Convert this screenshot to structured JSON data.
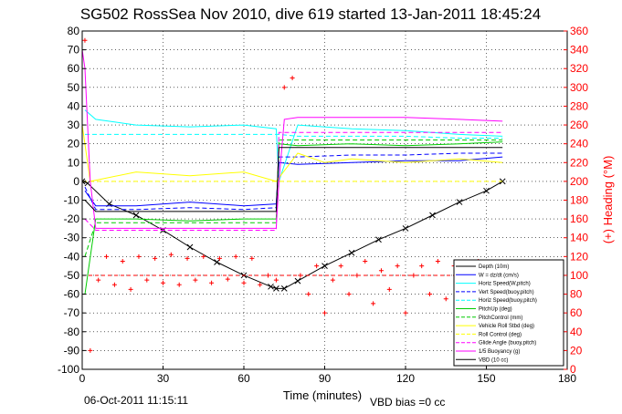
{
  "title": "SG502 RossSea Nov 2010, dive 619 started 13-Jan-2011 18:45:24",
  "footer": {
    "timestamp": "06-Oct-2011 11:15:11",
    "vbd_bias": "VBD bias =0 cc"
  },
  "colors": {
    "depth": "#000000",
    "w": "#0000ff",
    "horz_speed": "#00ffff",
    "pitch": "#00cc00",
    "roll": "#ffff00",
    "buoyancy": "#ff00ff",
    "heading": "#ff0000",
    "right_axis": "#ff0000"
  },
  "chart_data": {
    "type": "line",
    "title": "SG502 RossSea Nov 2010, dive 619 started 13-Jan-2011 18:45:24",
    "xlabel": "Time (minutes)",
    "ylabel": "",
    "y2label": "(+) Heading (°M)",
    "xlim": [
      0,
      180
    ],
    "ylim": [
      -100,
      80
    ],
    "y2lim": [
      0,
      360
    ],
    "x_ticks": [
      0,
      30,
      60,
      90,
      120,
      150,
      180
    ],
    "y_ticks": [
      -100,
      -90,
      -80,
      -70,
      -60,
      -50,
      -40,
      -30,
      -20,
      -10,
      0,
      10,
      20,
      30,
      40,
      50,
      60,
      70,
      80
    ],
    "y2_ticks": [
      0,
      20,
      40,
      60,
      80,
      100,
      120,
      140,
      160,
      180,
      200,
      220,
      240,
      260,
      280,
      300,
      320,
      340,
      360
    ],
    "grid": true,
    "legend_position": "bottom-right",
    "legend": [
      "Depth (10m)",
      "W = dz/dt (cm/s)",
      "Horiz Speed(W,pitch)",
      "Vert Speed(buoy,pitch)",
      "Horiz Speed(buoy,pitch)",
      "PitchUp (deg)",
      "PitchControl (mm)",
      "Vehicle Roll Stbd (deg)",
      "Roll Control (deg)",
      "Glide Angle (buoy,pitch)",
      "1/5 Buoyancy (g)",
      "VBD (10 cc)"
    ],
    "series": [
      {
        "name": "Depth (10m)",
        "color": "#000000",
        "style": "solid-x",
        "x": [
          0,
          2,
          10,
          20,
          30,
          40,
          50,
          60,
          70,
          72,
          75,
          80,
          90,
          100,
          110,
          120,
          130,
          140,
          150,
          156
        ],
        "y": [
          0,
          -1,
          -12,
          -18,
          -26,
          -35,
          -43,
          -50,
          -56,
          -57,
          -57,
          -53,
          -45,
          -38,
          -31,
          -25,
          -18,
          -11,
          -5,
          0
        ]
      },
      {
        "name": "W = dz/dt (cm/s)",
        "color": "#0000ff",
        "style": "solid",
        "x": [
          1,
          5,
          20,
          40,
          60,
          72,
          73,
          80,
          100,
          120,
          140,
          156
        ],
        "y": [
          -5,
          -13,
          -13,
          -11,
          -13,
          -12,
          10,
          9,
          10,
          11,
          11,
          13
        ]
      },
      {
        "name": "Horiz Speed(W,pitch)",
        "color": "#00ffff",
        "style": "solid",
        "x": [
          1,
          5,
          20,
          40,
          60,
          72,
          73,
          80,
          100,
          120,
          140,
          156
        ],
        "y": [
          38,
          33,
          30,
          29,
          30,
          28,
          0,
          30,
          28,
          27,
          25,
          24
        ]
      },
      {
        "name": "Vert Speed(buoy,pitch)",
        "color": "#0000ff",
        "style": "dashed",
        "x": [
          1,
          5,
          20,
          40,
          60,
          72,
          73,
          80,
          100,
          120,
          140,
          156
        ],
        "y": [
          -3,
          -15,
          -15,
          -14,
          -15,
          -14,
          13,
          13,
          14,
          14,
          15,
          15
        ]
      },
      {
        "name": "Horiz Speed(buoy,pitch)",
        "color": "#00ffff",
        "style": "dashed",
        "x": [
          1,
          5,
          20,
          40,
          60,
          72,
          73,
          80,
          100,
          120,
          140,
          156
        ],
        "y": [
          25,
          25,
          25,
          25,
          25,
          25,
          25,
          24,
          24,
          24,
          23,
          23
        ]
      },
      {
        "name": "PitchUp (deg)",
        "color": "#00cc00",
        "style": "solid",
        "x": [
          1,
          5,
          20,
          40,
          60,
          72,
          73,
          80,
          100,
          120,
          140,
          156
        ],
        "y": [
          -60,
          -20,
          -20,
          -21,
          -20,
          -20,
          20,
          19,
          20,
          19,
          20,
          21
        ]
      },
      {
        "name": "PitchControl (mm)",
        "color": "#00cc00",
        "style": "dashed",
        "x": [
          1,
          5,
          20,
          40,
          60,
          72,
          73,
          80,
          100,
          120,
          140,
          156
        ],
        "y": [
          -40,
          -22,
          -22,
          -22,
          -22,
          -22,
          22,
          22,
          22,
          22,
          22,
          22
        ]
      },
      {
        "name": "Vehicle Roll Stbd (deg)",
        "color": "#ffff00",
        "style": "solid",
        "x": [
          0,
          3,
          20,
          40,
          60,
          72,
          80,
          90,
          100,
          120,
          140,
          156
        ],
        "y": [
          30,
          0,
          5,
          3,
          5,
          0,
          15,
          10,
          12,
          10,
          12,
          10
        ]
      },
      {
        "name": "Roll Control (deg)",
        "color": "#ffff00",
        "style": "dashed",
        "x": [
          0,
          5,
          20,
          40,
          60,
          72,
          80,
          100,
          120,
          140,
          156
        ],
        "y": [
          0,
          0,
          0,
          0,
          0,
          0,
          0,
          0,
          0,
          0,
          0
        ]
      },
      {
        "name": "Glide Angle (buoy,pitch)",
        "color": "#ff00ff",
        "style": "dashed",
        "x": [
          1,
          5,
          20,
          40,
          60,
          72,
          73,
          80,
          100,
          120,
          140,
          156
        ],
        "y": [
          -20,
          -26,
          -26,
          -26,
          -26,
          -26,
          26,
          26,
          26,
          26,
          26,
          26
        ]
      },
      {
        "name": "1/5 Buoyancy (g)",
        "color": "#ff00ff",
        "style": "solid",
        "x": [
          0,
          1,
          3,
          5,
          20,
          40,
          60,
          72,
          73,
          75,
          80,
          100,
          120,
          140,
          156
        ],
        "y": [
          70,
          60,
          0,
          -25,
          -25,
          -25,
          -25,
          -25,
          0,
          33,
          34,
          34,
          34,
          33,
          32
        ]
      },
      {
        "name": "VBD (10 cc)",
        "color": "#000000",
        "style": "solid",
        "x": [
          1,
          5,
          20,
          40,
          60,
          72,
          73,
          80,
          100,
          120,
          140,
          156
        ],
        "y": [
          -10,
          -16,
          -16,
          -16,
          -16,
          -16,
          18,
          18,
          18,
          18,
          18,
          18
        ]
      }
    ],
    "heading": {
      "name": "(+) Heading (°M)",
      "axis": "right",
      "color": "#ff0000",
      "reference": 100,
      "x": [
        1,
        3,
        6,
        9,
        12,
        15,
        18,
        21,
        24,
        27,
        30,
        33,
        36,
        39,
        42,
        45,
        48,
        51,
        54,
        57,
        60,
        63,
        66,
        69,
        72,
        75,
        78,
        81,
        84,
        87,
        90,
        93,
        96,
        99,
        102,
        105,
        108,
        111,
        114,
        117,
        120,
        123,
        126,
        129,
        132,
        135,
        138,
        141,
        144,
        147,
        150,
        153,
        156
      ],
      "y": [
        350,
        20,
        95,
        120,
        90,
        115,
        85,
        120,
        95,
        118,
        92,
        122,
        90,
        118,
        95,
        120,
        92,
        118,
        96,
        120,
        92,
        118,
        90,
        100,
        95,
        300,
        310,
        100,
        80,
        110,
        60,
        95,
        110,
        80,
        100,
        115,
        70,
        105,
        85,
        110,
        60,
        100,
        110,
        80,
        115,
        75,
        110,
        95,
        80,
        115,
        90,
        100,
        95
      ]
    }
  }
}
